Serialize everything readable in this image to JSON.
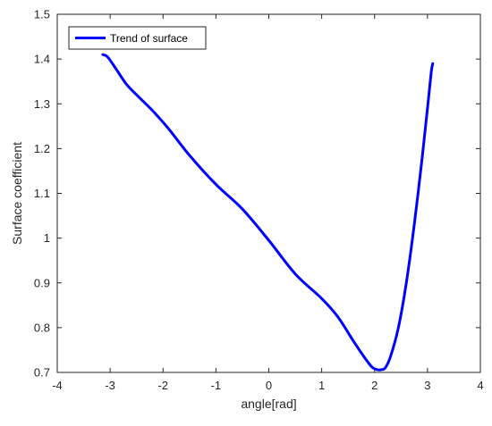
{
  "chart_data": {
    "type": "line",
    "title": "",
    "xlabel": "angle[rad]",
    "ylabel": "Surface coefficient",
    "xlim": [
      -4,
      4
    ],
    "ylim": [
      0.7,
      1.5
    ],
    "xticks": [
      "-4",
      "-3",
      "-2",
      "-1",
      "0",
      "1",
      "2",
      "3",
      "4"
    ],
    "yticks": [
      "0.7",
      "0.8",
      "0.9",
      "1",
      "1.1",
      "1.2",
      "1.3",
      "1.4",
      "1.5"
    ],
    "grid": false,
    "legend": {
      "position": "top-left"
    },
    "series": [
      {
        "name": "Trend of surface",
        "color": "#0000ff",
        "x": [
          -3.14,
          -3.05,
          -2.9,
          -2.7,
          -2.5,
          -2.2,
          -1.9,
          -1.5,
          -1.0,
          -0.5,
          0.0,
          0.5,
          1.0,
          1.3,
          1.6,
          1.8,
          1.95,
          2.05,
          2.12,
          2.2,
          2.3,
          2.45,
          2.6,
          2.75,
          2.9,
          3.0,
          3.07,
          3.1
        ],
        "y": [
          1.41,
          1.405,
          1.38,
          1.345,
          1.32,
          1.285,
          1.245,
          1.185,
          1.12,
          1.065,
          0.995,
          0.92,
          0.865,
          0.825,
          0.77,
          0.735,
          0.712,
          0.706,
          0.706,
          0.71,
          0.735,
          0.8,
          0.9,
          1.03,
          1.18,
          1.29,
          1.37,
          1.39
        ]
      }
    ]
  }
}
